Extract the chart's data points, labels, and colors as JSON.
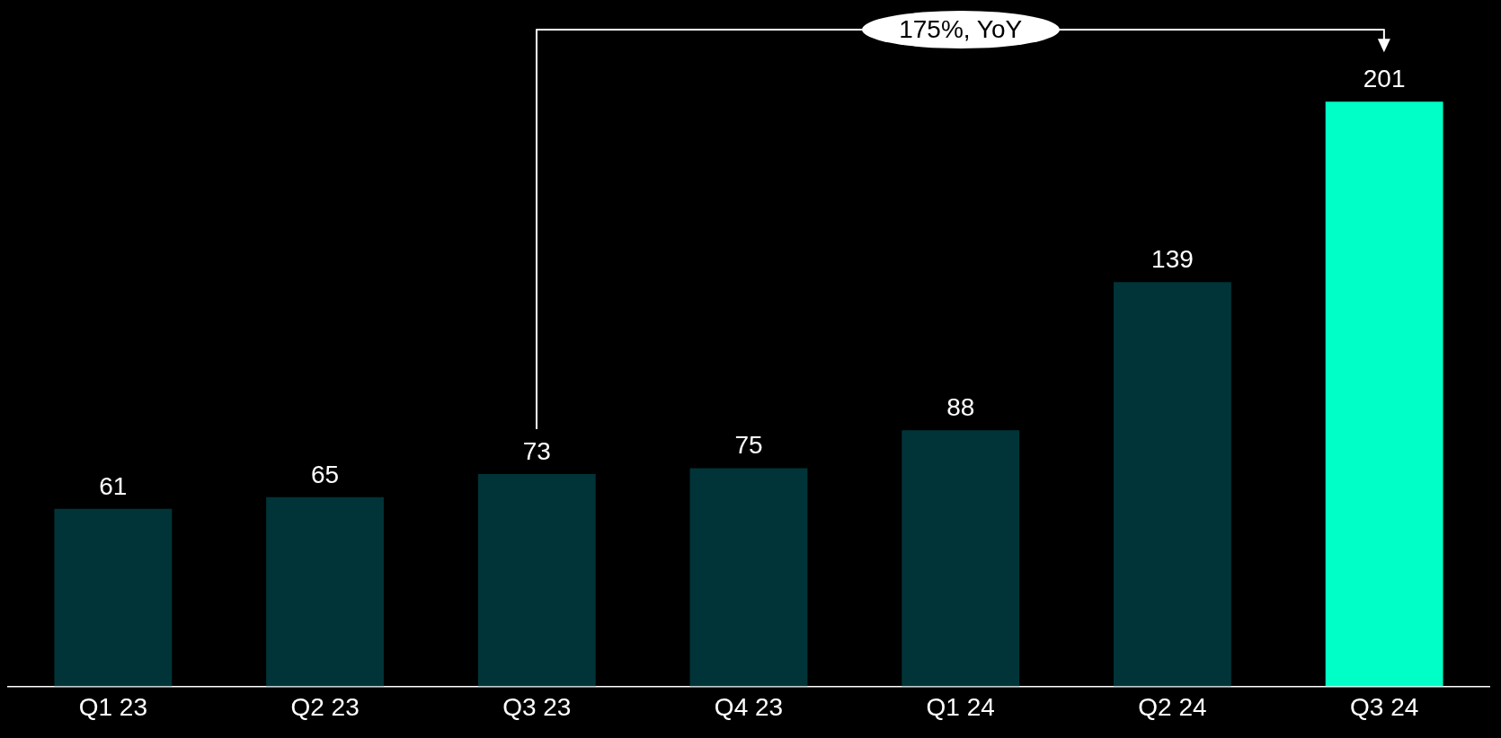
{
  "chart_data": {
    "type": "bar",
    "categories": [
      "Q1 23",
      "Q2 23",
      "Q3 23",
      "Q4 23",
      "Q1 24",
      "Q2 24",
      "Q3 24"
    ],
    "values": [
      61,
      65,
      73,
      75,
      88,
      139,
      201
    ],
    "colors": [
      "#003438",
      "#003438",
      "#003438",
      "#003438",
      "#003438",
      "#003438",
      "#00ffc6"
    ],
    "ylim": [
      0,
      236
    ],
    "data_labels": true,
    "legend": false,
    "tick_labels": "x",
    "annotations": [
      "175%, YoY"
    ]
  }
}
